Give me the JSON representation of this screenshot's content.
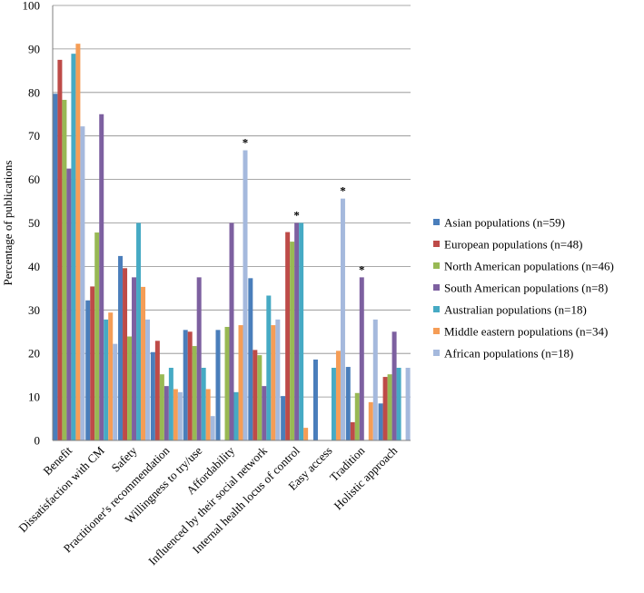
{
  "chart_data": {
    "type": "bar",
    "title": "",
    "xlabel": "",
    "ylabel": "Percentage of publications",
    "ylim": [
      0,
      100
    ],
    "yticks": [
      0,
      10,
      20,
      30,
      40,
      50,
      60,
      70,
      80,
      90,
      100
    ],
    "grid": true,
    "legend_position": "right",
    "categories": [
      "Benefit",
      "Dissatisfaction with CM",
      "Safety",
      "Practitioner's recommendation",
      "Willingness to try/use",
      "Affordability",
      "Influenced by their social network",
      "Internal health locus of control",
      "Easy access",
      "Tradition",
      "Holistic approach"
    ],
    "series": [
      {
        "name": "Asian populations (n=59)",
        "color": "#4a7ebb",
        "values": [
          79.7,
          32.2,
          42.4,
          20.3,
          25.4,
          25.4,
          37.3,
          10.2,
          18.6,
          16.9,
          8.5
        ]
      },
      {
        "name": "European populations (n=48)",
        "color": "#be4b48",
        "values": [
          87.5,
          35.4,
          39.6,
          22.9,
          25.0,
          0,
          20.8,
          47.9,
          0,
          4.2,
          14.6
        ]
      },
      {
        "name": "North American populations (n=46)",
        "color": "#98b954",
        "values": [
          78.3,
          47.8,
          23.9,
          15.2,
          21.7,
          26.1,
          19.6,
          45.7,
          0,
          10.9,
          15.2
        ]
      },
      {
        "name": "South American populations (n=8)",
        "color": "#7d60a0",
        "values": [
          62.5,
          75.0,
          37.5,
          12.5,
          37.5,
          50.0,
          12.5,
          50.0,
          0,
          37.5,
          25.0
        ]
      },
      {
        "name": "Australian populations (n=18)",
        "color": "#46aac4",
        "values": [
          88.9,
          27.8,
          50.0,
          16.7,
          16.7,
          11.1,
          33.3,
          50.0,
          16.7,
          0,
          16.7
        ]
      },
      {
        "name": "Middle eastern populations (n=34)",
        "color": "#f59d56",
        "values": [
          91.2,
          29.4,
          35.3,
          11.8,
          11.8,
          26.5,
          26.5,
          2.9,
          20.6,
          8.8,
          0
        ]
      },
      {
        "name": "African populations (n=18)",
        "color": "#a5b9dd",
        "values": [
          72.2,
          22.2,
          27.8,
          11.1,
          5.6,
          66.7,
          27.8,
          0,
          55.6,
          27.8,
          16.7
        ]
      }
    ],
    "annotations": [
      {
        "text": "*",
        "category": "Affordability",
        "series": "African populations (n=18)"
      },
      {
        "text": "*",
        "category": "Internal health locus of control",
        "series": "South American populations (n=8)"
      },
      {
        "text": "*",
        "category": "Easy access",
        "series": "African populations (n=18)"
      },
      {
        "text": "*",
        "category": "Tradition",
        "series": "South American populations (n=8)"
      }
    ]
  }
}
